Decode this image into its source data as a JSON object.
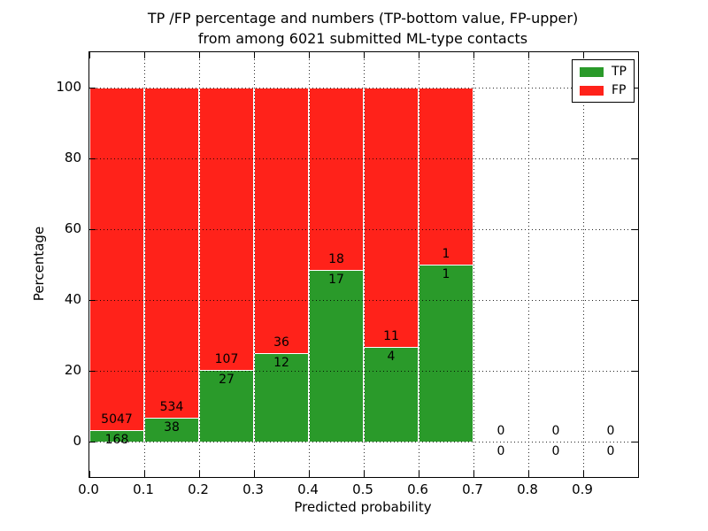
{
  "chart_data": {
    "type": "bar",
    "stacked": true,
    "title_line1": "TP /FP percentage and numbers (TP-bottom value, FP-upper)",
    "title_line2": "from among 6021 submitted ML-type contacts",
    "total_contacts": 6021,
    "xlabel": "Predicted probability",
    "ylabel": "Percentage",
    "x_ticks": [
      "0.0",
      "0.1",
      "0.2",
      "0.3",
      "0.4",
      "0.5",
      "0.6",
      "0.7",
      "0.8",
      "0.9"
    ],
    "y_ticks": [
      "0",
      "20",
      "40",
      "60",
      "80",
      "100"
    ],
    "xlim": [
      0.0,
      1.0
    ],
    "ylim": [
      -10,
      110
    ],
    "grid": true,
    "bar_width": 0.1,
    "colors": {
      "tp": "#2a9a2a",
      "fp": "#ff221a",
      "bar_edge": "#ffffff"
    },
    "legend": {
      "position": "upper right",
      "entries": [
        {
          "label": "TP",
          "color": "#2a9a2a"
        },
        {
          "label": "FP",
          "color": "#ff221a"
        }
      ]
    },
    "bins": [
      {
        "x0": 0.0,
        "x1": 0.1,
        "tp": 168,
        "fp": 5047,
        "tp_pct": 3.22
      },
      {
        "x0": 0.1,
        "x1": 0.2,
        "tp": 38,
        "fp": 534,
        "tp_pct": 6.64
      },
      {
        "x0": 0.2,
        "x1": 0.3,
        "tp": 27,
        "fp": 107,
        "tp_pct": 20.15
      },
      {
        "x0": 0.3,
        "x1": 0.4,
        "tp": 12,
        "fp": 36,
        "tp_pct": 25.0
      },
      {
        "x0": 0.4,
        "x1": 0.5,
        "tp": 17,
        "fp": 18,
        "tp_pct": 48.57
      },
      {
        "x0": 0.5,
        "x1": 0.6,
        "tp": 4,
        "fp": 11,
        "tp_pct": 26.67
      },
      {
        "x0": 0.6,
        "x1": 0.7,
        "tp": 1,
        "fp": 1,
        "tp_pct": 50.0
      },
      {
        "x0": 0.7,
        "x1": 0.8,
        "tp": 0,
        "fp": 0,
        "tp_pct": 0.0
      },
      {
        "x0": 0.8,
        "x1": 0.9,
        "tp": 0,
        "fp": 0,
        "tp_pct": 0.0
      },
      {
        "x0": 0.9,
        "x1": 1.0,
        "tp": 0,
        "fp": 0,
        "tp_pct": 0.0
      }
    ]
  }
}
